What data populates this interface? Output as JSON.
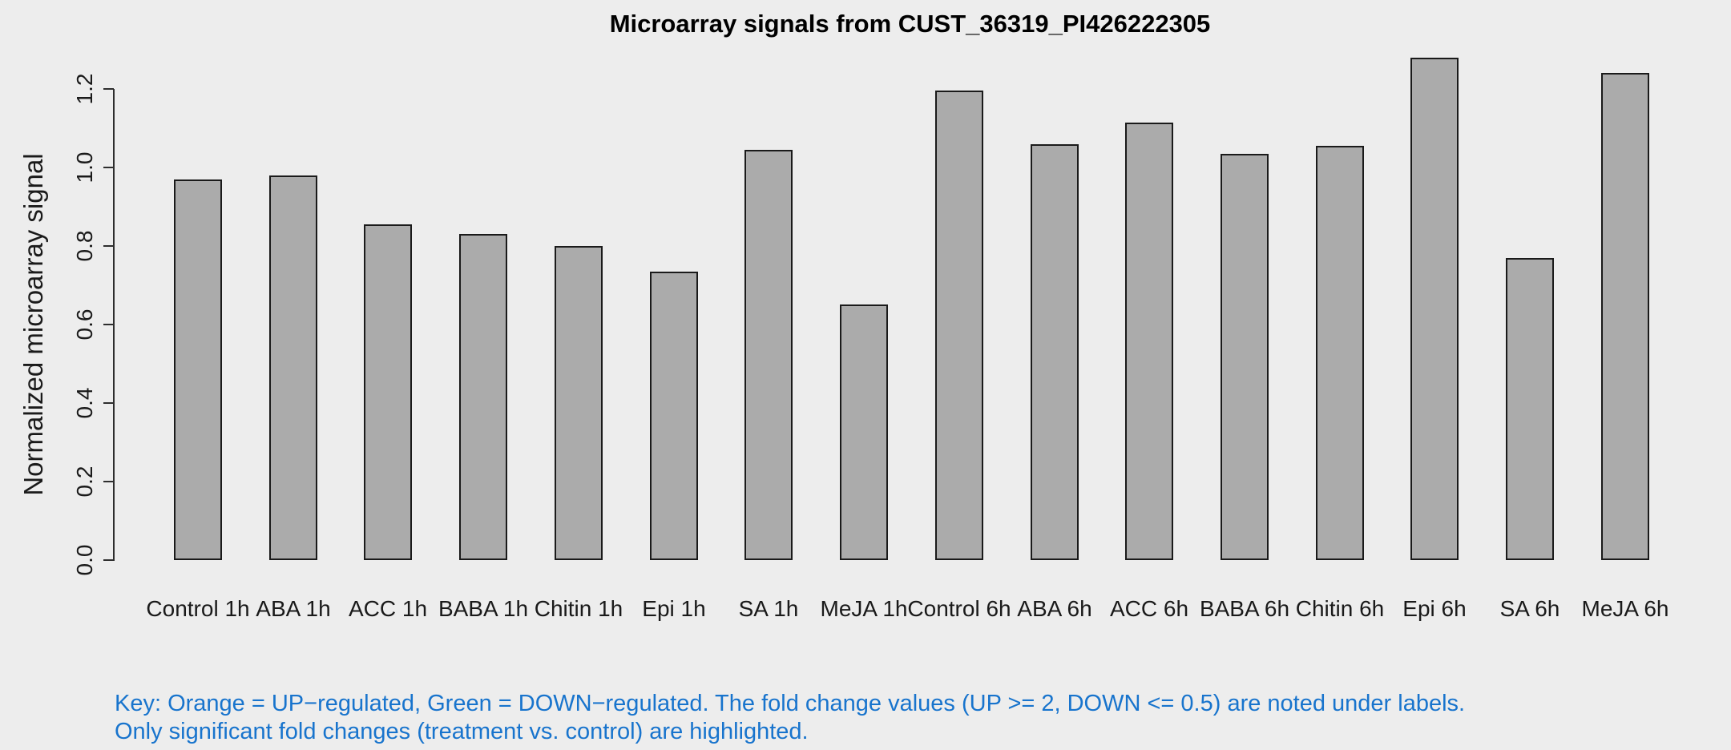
{
  "title": "Microarray signals from CUST_36319_PI426222305",
  "key": {
    "line1": "Key: Orange = UP−regulated, Green = DOWN−regulated. The fold change values (UP >= 2, DOWN <= 0.5) are noted under labels.",
    "line2": "Only significant fold changes (treatment vs. control) are highlighted."
  },
  "colors": {
    "background": "#EDEDED",
    "bar_fill": "#ABABAB",
    "bar_border": "#1A1A1A",
    "axis": "#2E2E2E",
    "text": "#1A1A1A",
    "key_text": "#1874CD"
  },
  "chart_data": {
    "type": "bar",
    "title": "Microarray signals from CUST_36319_PI426222305",
    "xlabel": "",
    "ylabel": "Normalized microarray signal",
    "categories": [
      "Control 1h",
      "ABA 1h",
      "ACC 1h",
      "BABA 1h",
      "Chitin 1h",
      "Epi 1h",
      "SA 1h",
      "MeJA 1h",
      "Control 6h",
      "ABA 6h",
      "ACC 6h",
      "BABA 6h",
      "Chitin 6h",
      "Epi 6h",
      "SA 6h",
      "MeJA 6h"
    ],
    "values": [
      0.97,
      0.98,
      0.855,
      0.83,
      0.8,
      0.735,
      1.045,
      0.65,
      1.195,
      1.06,
      1.115,
      1.035,
      1.055,
      1.28,
      0.77,
      1.24
    ],
    "ytick_labels": [
      "0.0",
      "0.2",
      "0.4",
      "0.6",
      "0.8",
      "1.0",
      "1.2"
    ],
    "yticks": [
      0.0,
      0.2,
      0.4,
      0.6,
      0.8,
      1.0,
      1.2
    ],
    "ylim": [
      0,
      1.2
    ],
    "grid": false,
    "legend": "none"
  }
}
